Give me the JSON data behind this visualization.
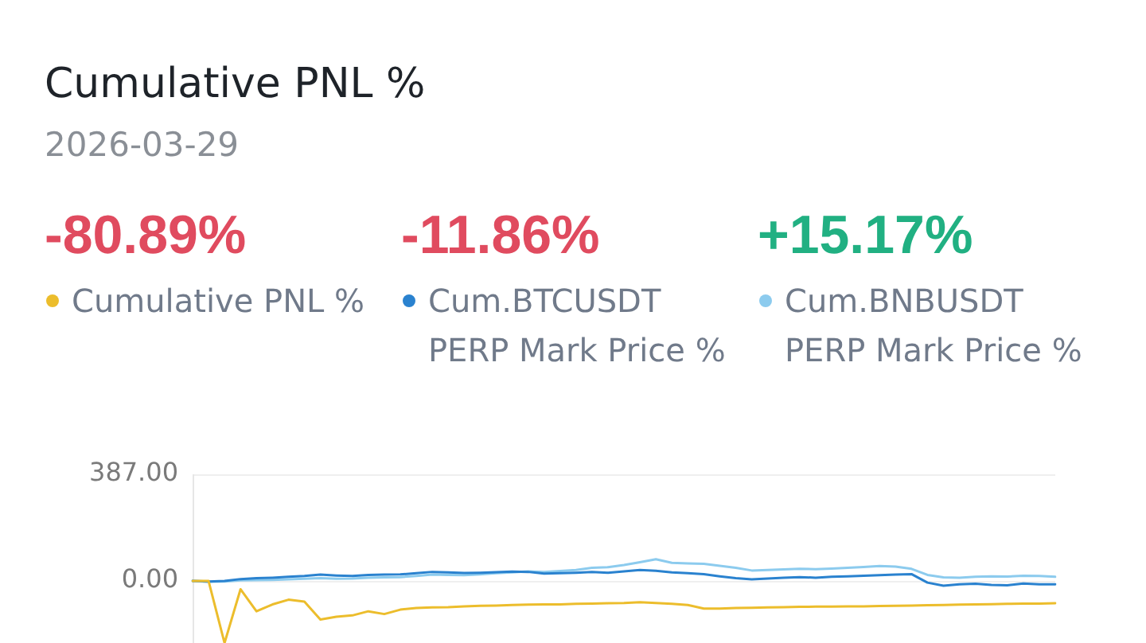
{
  "chart_data": {
    "type": "line",
    "title": "Cumulative PNL %",
    "subtitle": "2026-03-29",
    "annotations": [
      "-80.89%",
      "-11.86%",
      "+15.17%"
    ],
    "categories": [
      null,
      null,
      null,
      null,
      null,
      null,
      null,
      null,
      null,
      null,
      null,
      null,
      null,
      null,
      null,
      null,
      null,
      null,
      null,
      null,
      null,
      null,
      null,
      null,
      null,
      null,
      null,
      null,
      null,
      null,
      null,
      null,
      null,
      null,
      null,
      null,
      null,
      null,
      null,
      null,
      null,
      null,
      null,
      null,
      null,
      null,
      null,
      null,
      null,
      null,
      null,
      null,
      null,
      null,
      null
    ],
    "series": [
      {
        "name": "Cumulative PNL %",
        "color": "#ecbd2c",
        "values": [
          0,
          0,
          -225,
          -30,
          -110,
          -85,
          -68,
          -75,
          -140,
          -130,
          -125,
          -110,
          -120,
          -104,
          -98,
          -96,
          -95,
          -92,
          -90,
          -89,
          -87,
          -86,
          -85,
          -85,
          -83,
          -82,
          -81,
          -80,
          -77,
          -80,
          -83,
          -87,
          -100,
          -100,
          -98,
          -97,
          -96,
          -95,
          -94,
          -93,
          -93,
          -92,
          -92,
          -91,
          -90,
          -89,
          -88,
          -87,
          -86,
          -85,
          -84,
          -83,
          -82,
          -82,
          -80.89
        ]
      },
      {
        "name": "Cum.BTCUSDT PERP Mark Price %",
        "color": "#2a82cf",
        "values": [
          0,
          -2,
          0,
          7,
          10,
          12,
          15,
          18,
          23,
          20,
          18,
          22,
          23,
          24,
          28,
          33,
          31,
          29,
          30,
          32,
          34,
          33,
          27,
          28,
          30,
          33,
          30,
          35,
          40,
          37,
          31,
          28,
          25,
          17,
          10,
          6,
          9,
          12,
          14,
          12,
          15,
          17,
          19,
          21,
          23,
          25,
          -6,
          -17,
          -12,
          -10,
          -14,
          -16,
          -9,
          -12,
          -11.86
        ]
      },
      {
        "name": "Cum.BNBUSDT PERP Mark Price %",
        "color": "#8ccbee",
        "values": [
          0,
          -3,
          -2,
          2,
          3,
          4,
          6,
          8,
          10,
          8,
          9,
          12,
          13,
          14,
          18,
          23,
          22,
          21,
          24,
          28,
          31,
          35,
          33,
          36,
          40,
          48,
          50,
          58,
          68,
          79,
          66,
          64,
          62,
          55,
          48,
          38,
          40,
          42,
          44,
          43,
          45,
          48,
          51,
          54,
          52,
          44,
          22,
          13,
          12,
          15,
          17,
          16,
          19,
          18,
          15.17
        ]
      }
    ],
    "ylim": [
      -225,
      387
    ],
    "yticks": [
      {
        "value": 387,
        "label": "387.00"
      },
      {
        "value": 0,
        "label": "0.00"
      }
    ],
    "grid": "y",
    "legend": "top",
    "marker": "none",
    "tick_labels": "y"
  }
}
